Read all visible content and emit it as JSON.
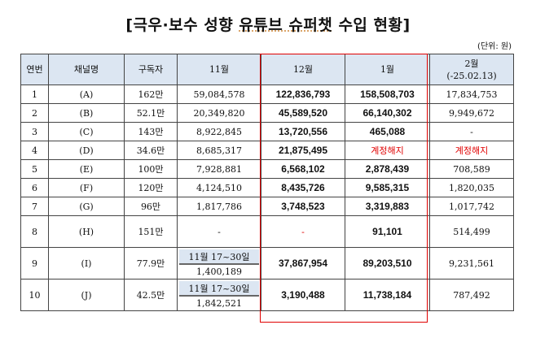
{
  "title_pre": "[극우·보수 성향 ",
  "title_u": "유튜브 슈퍼챗",
  "title_post": " 수입 현황]",
  "unit": "(단위: 원)",
  "headers": [
    "연번",
    "채널명",
    "구독자",
    "11월",
    "12월",
    "1월",
    "2월",
    "(-25.02.13)"
  ],
  "highlight_color": "#e00000",
  "rows": [
    {
      "no": "1",
      "ch": "(A)",
      "sub": "162만",
      "nov": "59,084,578",
      "dec": "122,836,793",
      "jan": "158,508,703",
      "feb": "17,834,753"
    },
    {
      "no": "2",
      "ch": "(B)",
      "sub": "52.1만",
      "nov": "20,349,820",
      "dec": "45,589,520",
      "jan": "66,140,302",
      "feb": "9,949,672"
    },
    {
      "no": "3",
      "ch": "(C)",
      "sub": "143만",
      "nov": "8,922,845",
      "dec": "13,720,556",
      "jan": "465,088",
      "feb": "-"
    },
    {
      "no": "4",
      "ch": "(D)",
      "sub": "34.6만",
      "nov": "8,685,317",
      "dec": "21,875,495",
      "jan": "계정해지",
      "feb": "계정해지"
    },
    {
      "no": "5",
      "ch": "(E)",
      "sub": "100만",
      "nov": "7,928,881",
      "dec": "6,568,102",
      "jan": "2,878,439",
      "feb": "708,589"
    },
    {
      "no": "6",
      "ch": "(F)",
      "sub": "120만",
      "nov": "4,124,510",
      "dec": "8,435,726",
      "jan": "9,585,315",
      "feb": "1,820,035"
    },
    {
      "no": "7",
      "ch": "(G)",
      "sub": "96만",
      "nov": "1,817,786",
      "dec": "3,748,523",
      "jan": "3,319,883",
      "feb": "1,017,742"
    },
    {
      "no": "8",
      "ch": "(H)",
      "sub": "151만",
      "nov": "-",
      "dec": "-",
      "jan": "91,101",
      "feb": "514,499"
    },
    {
      "no": "9",
      "ch": "(I)",
      "sub": "77.9만",
      "nov_note": "11월 17~30일",
      "nov": "1,400,189",
      "dec": "37,867,954",
      "jan": "89,203,510",
      "feb": "9,231,561"
    },
    {
      "no": "10",
      "ch": "(J)",
      "sub": "42.5만",
      "nov_note": "11월 17~30일",
      "nov": "1,842,521",
      "dec": "3,190,488",
      "jan": "11,738,184",
      "feb": "787,492"
    }
  ]
}
